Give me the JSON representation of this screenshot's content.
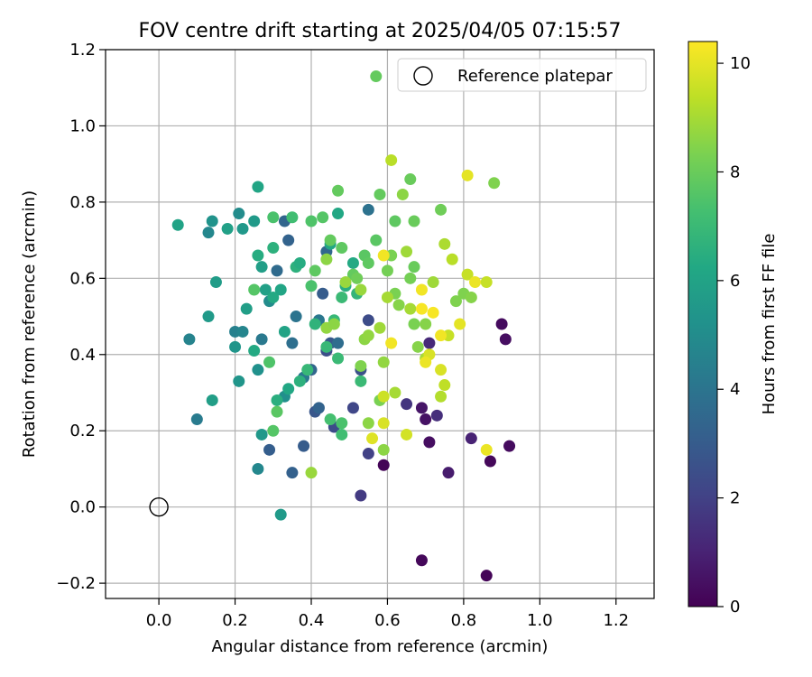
{
  "chart_data": {
    "type": "scatter",
    "title": "FOV centre drift starting at 2025/04/05 07:15:57",
    "xlabel": "Angular distance from reference (arcmin)",
    "ylabel": "Rotation from reference (arcmin)",
    "xlim": [
      -0.14,
      1.3
    ],
    "ylim": [
      -0.24,
      1.2
    ],
    "xticks": [
      "0.0",
      "0.2",
      "0.4",
      "0.6",
      "0.8",
      "1.0",
      "1.2"
    ],
    "yticks": [
      "−0.2",
      "0.0",
      "0.2",
      "0.4",
      "0.6",
      "0.8",
      "1.0",
      "1.2"
    ],
    "grid": true,
    "legend": {
      "position": "top-right",
      "entries": [
        "Reference platepar"
      ]
    },
    "reference_point": {
      "x": 0.0,
      "y": 0.0
    },
    "colorbar": {
      "label": "Hours from first FF file",
      "range": [
        0,
        10.4
      ],
      "ticks": [
        "0",
        "2",
        "4",
        "6",
        "8",
        "10"
      ],
      "colormap": "viridis"
    },
    "points": [
      [
        0.59,
        0.11,
        0.1
      ],
      [
        0.69,
        -0.14,
        0.2
      ],
      [
        0.86,
        -0.18,
        0.1
      ],
      [
        0.92,
        0.16,
        0.3
      ],
      [
        0.87,
        0.12,
        0.2
      ],
      [
        0.9,
        0.48,
        0.3
      ],
      [
        0.91,
        0.44,
        0.4
      ],
      [
        0.7,
        0.23,
        0.5
      ],
      [
        0.71,
        0.17,
        0.4
      ],
      [
        0.69,
        0.26,
        0.6
      ],
      [
        0.76,
        0.09,
        0.8
      ],
      [
        0.82,
        0.18,
        1.0
      ],
      [
        0.73,
        0.24,
        1.4
      ],
      [
        0.71,
        0.43,
        1.2
      ],
      [
        0.65,
        0.27,
        1.6
      ],
      [
        0.53,
        0.03,
        1.8
      ],
      [
        0.55,
        0.14,
        2.0
      ],
      [
        0.51,
        0.26,
        2.2
      ],
      [
        0.46,
        0.21,
        2.4
      ],
      [
        0.55,
        0.49,
        2.4
      ],
      [
        0.53,
        0.36,
        2.6
      ],
      [
        0.44,
        0.41,
        2.5
      ],
      [
        0.41,
        0.25,
        2.8
      ],
      [
        0.45,
        0.43,
        2.9
      ],
      [
        0.38,
        0.16,
        3.0
      ],
      [
        0.35,
        0.09,
        3.2
      ],
      [
        0.29,
        0.15,
        3.1
      ],
      [
        0.43,
        0.56,
        3.0
      ],
      [
        0.34,
        0.7,
        3.3
      ],
      [
        0.33,
        0.75,
        3.4
      ],
      [
        0.42,
        0.26,
        3.3
      ],
      [
        0.4,
        0.36,
        3.4
      ],
      [
        0.31,
        0.62,
        3.6
      ],
      [
        0.35,
        0.43,
        3.8
      ],
      [
        0.44,
        0.67,
        3.5
      ],
      [
        0.55,
        0.78,
        3.9
      ],
      [
        0.47,
        0.43,
        3.7
      ],
      [
        0.36,
        0.5,
        4.0
      ],
      [
        0.42,
        0.49,
        4.1
      ],
      [
        0.38,
        0.34,
        4.2
      ],
      [
        0.27,
        0.44,
        4.2
      ],
      [
        0.1,
        0.23,
        4.3
      ],
      [
        0.08,
        0.44,
        4.6
      ],
      [
        0.2,
        0.46,
        4.5
      ],
      [
        0.22,
        0.46,
        4.7
      ],
      [
        0.26,
        0.1,
        4.8
      ],
      [
        0.13,
        0.72,
        4.8
      ],
      [
        0.21,
        0.77,
        5.0
      ],
      [
        0.29,
        0.54,
        5.0
      ],
      [
        0.33,
        0.29,
        5.1
      ],
      [
        0.32,
        -0.02,
        5.6
      ],
      [
        0.27,
        0.19,
        5.5
      ],
      [
        0.26,
        0.36,
        5.2
      ],
      [
        0.2,
        0.42,
        5.4
      ],
      [
        0.21,
        0.33,
        5.4
      ],
      [
        0.14,
        0.28,
        5.8
      ],
      [
        0.13,
        0.5,
        5.6
      ],
      [
        0.15,
        0.59,
        5.7
      ],
      [
        0.05,
        0.74,
        6.0
      ],
      [
        0.14,
        0.75,
        5.3
      ],
      [
        0.18,
        0.73,
        5.9
      ],
      [
        0.22,
        0.73,
        5.5
      ],
      [
        0.25,
        0.75,
        5.6
      ],
      [
        0.26,
        0.84,
        6.1
      ],
      [
        0.23,
        0.52,
        5.8
      ],
      [
        0.25,
        0.41,
        6.3
      ],
      [
        0.26,
        0.66,
        6.4
      ],
      [
        0.27,
        0.63,
        5.8
      ],
      [
        0.28,
        0.57,
        5.9
      ],
      [
        0.3,
        0.55,
        6.3
      ],
      [
        0.32,
        0.57,
        6.1
      ],
      [
        0.3,
        0.68,
        6.6
      ],
      [
        0.33,
        0.46,
        6.0
      ],
      [
        0.31,
        0.28,
        6.5
      ],
      [
        0.34,
        0.31,
        6.2
      ],
      [
        0.37,
        0.33,
        6.6
      ],
      [
        0.36,
        0.63,
        6.6
      ],
      [
        0.37,
        0.64,
        6.4
      ],
      [
        0.39,
        0.36,
        6.9
      ],
      [
        0.41,
        0.48,
        6.7
      ],
      [
        0.45,
        0.69,
        6.2
      ],
      [
        0.47,
        0.77,
        6.2
      ],
      [
        0.49,
        0.58,
        6.5
      ],
      [
        0.51,
        0.64,
        6.3
      ],
      [
        0.52,
        0.56,
        6.8
      ],
      [
        0.48,
        0.55,
        7.0
      ],
      [
        0.46,
        0.49,
        6.9
      ],
      [
        0.44,
        0.42,
        6.9
      ],
      [
        0.47,
        0.39,
        7.0
      ],
      [
        0.53,
        0.33,
        7.0
      ],
      [
        0.48,
        0.19,
        7.2
      ],
      [
        0.48,
        0.22,
        7.4
      ],
      [
        0.45,
        0.23,
        7.3
      ],
      [
        0.3,
        0.2,
        7.6
      ],
      [
        0.31,
        0.25,
        7.7
      ],
      [
        0.29,
        0.38,
        7.5
      ],
      [
        0.25,
        0.57,
        7.6
      ],
      [
        0.3,
        0.76,
        7.4
      ],
      [
        0.35,
        0.76,
        7.2
      ],
      [
        0.4,
        0.75,
        7.5
      ],
      [
        0.4,
        0.58,
        7.4
      ],
      [
        0.41,
        0.62,
        7.8
      ],
      [
        0.43,
        0.76,
        7.6
      ],
      [
        0.45,
        0.7,
        7.9
      ],
      [
        0.47,
        0.83,
        7.9
      ],
      [
        0.48,
        0.68,
        7.8
      ],
      [
        0.51,
        0.61,
        7.9
      ],
      [
        0.52,
        0.6,
        8.1
      ],
      [
        0.54,
        0.66,
        7.7
      ],
      [
        0.55,
        0.64,
        7.8
      ],
      [
        0.57,
        0.7,
        7.7
      ],
      [
        0.58,
        0.82,
        7.9
      ],
      [
        0.57,
        1.13,
        7.9
      ],
      [
        0.62,
        0.75,
        7.8
      ],
      [
        0.66,
        0.86,
        8.0
      ],
      [
        0.67,
        0.75,
        8.0
      ],
      [
        0.67,
        0.63,
        8.0
      ],
      [
        0.6,
        0.62,
        8.2
      ],
      [
        0.61,
        0.66,
        8.3
      ],
      [
        0.62,
        0.56,
        8.3
      ],
      [
        0.63,
        0.53,
        8.5
      ],
      [
        0.66,
        0.6,
        8.2
      ],
      [
        0.67,
        0.48,
        8.3
      ],
      [
        0.68,
        0.42,
        8.5
      ],
      [
        0.7,
        0.48,
        8.5
      ],
      [
        0.74,
        0.78,
        8.1
      ],
      [
        0.78,
        0.54,
        8.4
      ],
      [
        0.8,
        0.56,
        8.4
      ],
      [
        0.82,
        0.55,
        8.5
      ],
      [
        0.58,
        0.28,
        8.3
      ],
      [
        0.59,
        0.15,
        8.6
      ],
      [
        0.55,
        0.22,
        8.6
      ],
      [
        0.4,
        0.09,
        8.8
      ],
      [
        0.53,
        0.37,
        8.4
      ],
      [
        0.54,
        0.44,
        8.6
      ],
      [
        0.44,
        0.47,
        8.7
      ],
      [
        0.46,
        0.48,
        8.6
      ],
      [
        0.44,
        0.65,
        8.6
      ],
      [
        0.49,
        0.59,
        8.8
      ],
      [
        0.53,
        0.57,
        8.8
      ],
      [
        0.55,
        0.45,
        8.7
      ],
      [
        0.58,
        0.47,
        8.9
      ],
      [
        0.59,
        0.38,
        8.7
      ],
      [
        0.62,
        0.3,
        9.0
      ],
      [
        0.6,
        0.55,
        9.0
      ],
      [
        0.64,
        0.82,
        8.6
      ],
      [
        0.65,
        0.67,
        8.9
      ],
      [
        0.66,
        0.52,
        9.0
      ],
      [
        0.7,
        0.39,
        9.0
      ],
      [
        0.72,
        0.59,
        8.9
      ],
      [
        0.74,
        0.29,
        9.2
      ],
      [
        0.75,
        0.32,
        9.4
      ],
      [
        0.75,
        0.69,
        9.1
      ],
      [
        0.76,
        0.45,
        9.5
      ],
      [
        0.77,
        0.65,
        9.3
      ],
      [
        0.81,
        0.61,
        9.5
      ],
      [
        0.86,
        0.59,
        9.5
      ],
      [
        0.88,
        0.85,
        8.4
      ],
      [
        0.61,
        0.91,
        9.3
      ],
      [
        0.59,
        0.29,
        9.6
      ],
      [
        0.59,
        0.22,
        9.8
      ],
      [
        0.56,
        0.18,
        9.9
      ],
      [
        0.65,
        0.19,
        9.7
      ],
      [
        0.71,
        0.4,
        9.8
      ],
      [
        0.74,
        0.36,
        9.8
      ],
      [
        0.74,
        0.45,
        10.2
      ],
      [
        0.79,
        0.48,
        10.0
      ],
      [
        0.81,
        0.87,
        10.0
      ],
      [
        0.83,
        0.59,
        10.1
      ],
      [
        0.86,
        0.15,
        10.1
      ],
      [
        0.69,
        0.57,
        10.2
      ],
      [
        0.7,
        0.38,
        10.1
      ],
      [
        0.59,
        0.66,
        10.2
      ],
      [
        0.61,
        0.43,
        10.2
      ],
      [
        0.69,
        0.52,
        10.3
      ],
      [
        0.72,
        0.51,
        10.3
      ]
    ]
  }
}
